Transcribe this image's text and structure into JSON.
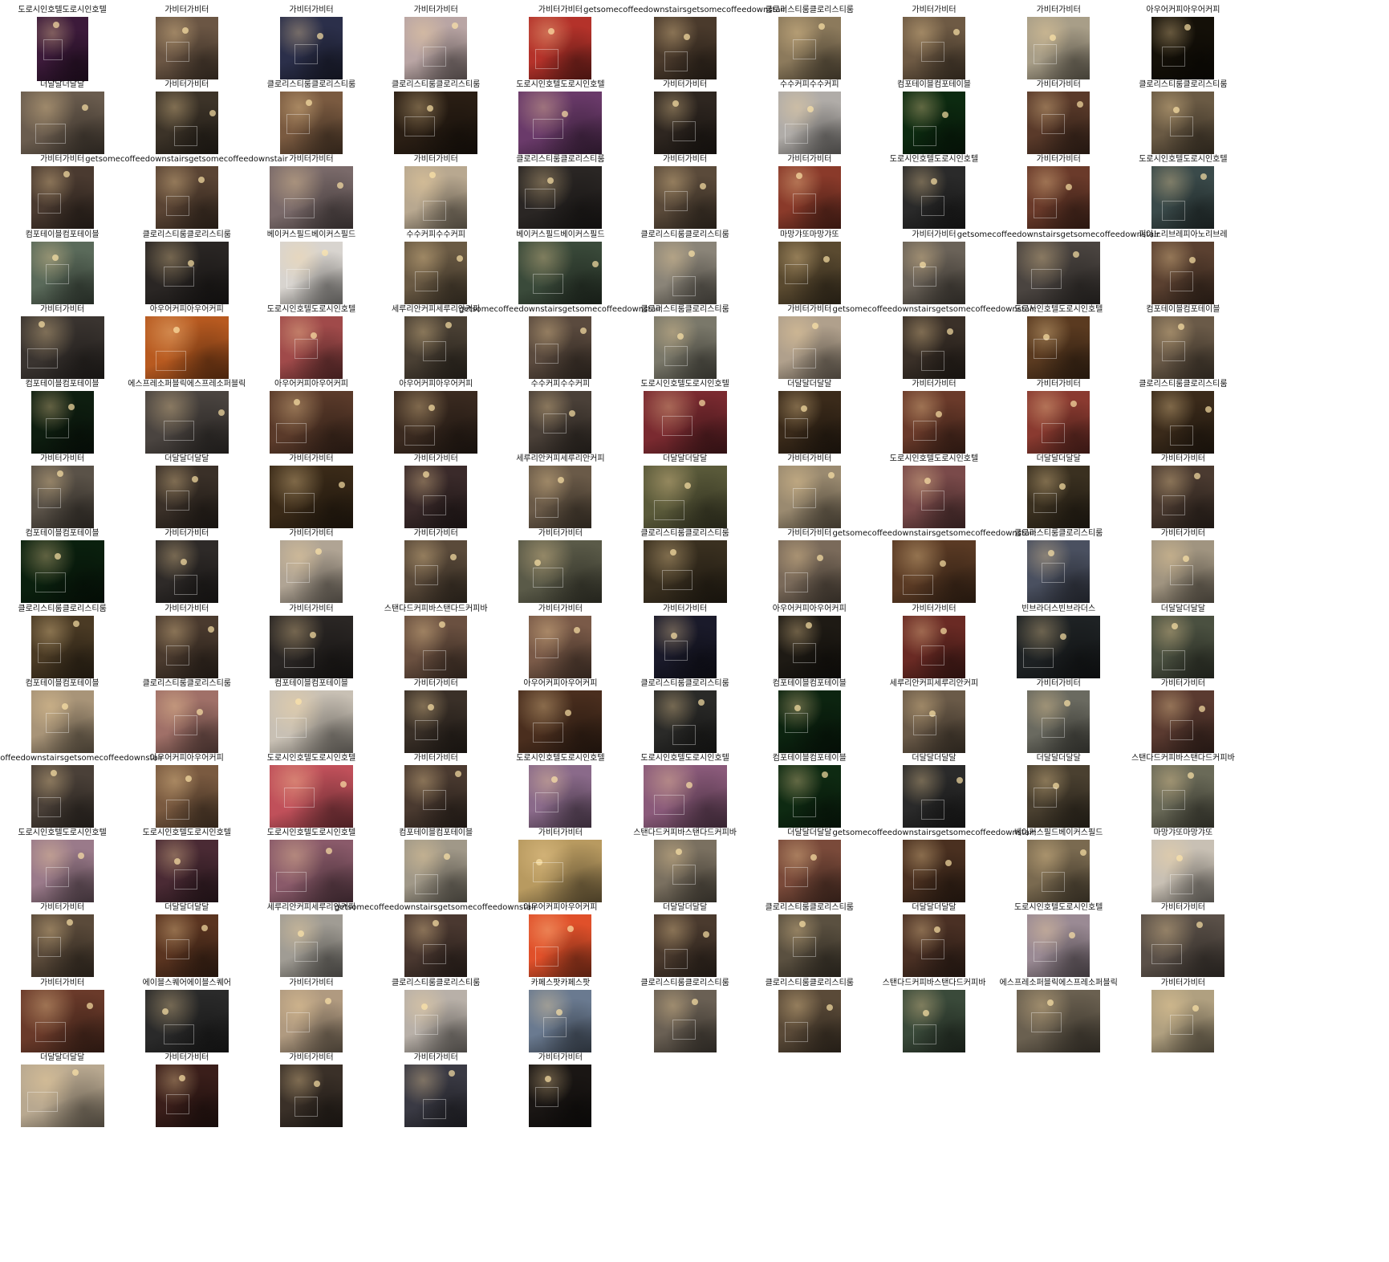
{
  "gallery": {
    "columns": 10,
    "items": [
      {
        "caption": "도로시인호텔도로시인호텔",
        "tone": "#3c1a3a",
        "shape": "portrait"
      },
      {
        "caption": "가비터가비터",
        "tone": "#6b5644",
        "shape": "square"
      },
      {
        "caption": "가비터가비터",
        "tone": "#2b2f4a",
        "shape": "square"
      },
      {
        "caption": "가비터가비터",
        "tone": "#b9a5a4",
        "shape": "square"
      },
      {
        "caption": "가비터가비터",
        "tone": "#b4322a",
        "shape": "square"
      },
      {
        "caption": "getsomecoffeedownstairsgetsomecoffeedownstairs",
        "tone": "#4a3a2c",
        "shape": "square"
      },
      {
        "caption": "클로리스티룸클로리스티룸",
        "tone": "#8c7a5c",
        "shape": "square"
      },
      {
        "caption": "가비터가비터",
        "tone": "#6e5a44",
        "shape": "square"
      },
      {
        "caption": "가비터가비터",
        "tone": "#a89e88",
        "shape": "square"
      },
      {
        "caption": "아우어커피아우어커피",
        "tone": "#141008",
        "shape": "square"
      },
      {
        "caption": "더달달더달달",
        "tone": "#6a5c4e",
        "shape": "landscape"
      },
      {
        "caption": "가비터가비터",
        "tone": "#3c3328",
        "shape": "square"
      },
      {
        "caption": "클로리스티룸클로리스티룸",
        "tone": "#7a5a40",
        "shape": "square"
      },
      {
        "caption": "클로리스티룸클로리스티룸",
        "tone": "#2a1e14",
        "shape": "landscape"
      },
      {
        "caption": "도로시인호텔도로시인호텔",
        "tone": "#6a3a6a",
        "shape": "landscape"
      },
      {
        "caption": "가비터가비터",
        "tone": "#2e2620",
        "shape": "square"
      },
      {
        "caption": "수수커피수수커피",
        "tone": "#b0aca8",
        "shape": "square"
      },
      {
        "caption": "컴포테이블컴포테이블",
        "tone": "#0c2a10",
        "shape": "square"
      },
      {
        "caption": "가비터가비터",
        "tone": "#5a3a2a",
        "shape": "square"
      },
      {
        "caption": "클로리스티룸클로리스티룸",
        "tone": "#6a5a44",
        "shape": "square"
      },
      {
        "caption": "가비터가비터",
        "tone": "#4a3a30",
        "shape": "square"
      },
      {
        "caption": "getsomecoffeedownstairsgetsomecoffeedownstairs",
        "tone": "#5a4434",
        "shape": "square"
      },
      {
        "caption": "가비터가비터",
        "tone": "#7a6a6a",
        "shape": "landscape"
      },
      {
        "caption": "가비터가비터",
        "tone": "#b8a890",
        "shape": "square"
      },
      {
        "caption": "클로리스티룸클로리스티룸",
        "tone": "#2a2624",
        "shape": "landscape"
      },
      {
        "caption": "가비터가비터",
        "tone": "#5a4a3a",
        "shape": "square"
      },
      {
        "caption": "가비터가비터",
        "tone": "#8a3a2a",
        "shape": "square"
      },
      {
        "caption": "도로시인호텔도로시인호텔",
        "tone": "#2a2a2a",
        "shape": "square"
      },
      {
        "caption": "가비터가비터",
        "tone": "#6a3a2a",
        "shape": "square"
      },
      {
        "caption": "도로시인호텔도로시인호텔",
        "tone": "#3a4a4a",
        "shape": "square"
      },
      {
        "caption": "컴포테이블컴포테이블",
        "tone": "#5a6a5a",
        "shape": "square"
      },
      {
        "caption": "클로리스티룸클로리스티룸",
        "tone": "#2a2624",
        "shape": "landscape"
      },
      {
        "caption": "베이커스필드베이커스필드",
        "tone": "#d8d4cf",
        "shape": "square"
      },
      {
        "caption": "수수커피수수커피",
        "tone": "#6a5a44",
        "shape": "square"
      },
      {
        "caption": "베이커스필드베이커스필드",
        "tone": "#3a4a3a",
        "shape": "landscape"
      },
      {
        "caption": "클로리스티룸클로리스티룸",
        "tone": "#8a8478",
        "shape": "square"
      },
      {
        "caption": "마망갸또마망갸또",
        "tone": "#5a4a30",
        "shape": "square"
      },
      {
        "caption": "가비터가비터",
        "tone": "#6a6258",
        "shape": "square"
      },
      {
        "caption": "getsomecoffeedownstairsgetsomecoffeedownstairs",
        "tone": "#4a4440",
        "shape": "landscape"
      },
      {
        "caption": "피아노리브레피아노리브레",
        "tone": "#5a4030",
        "shape": "square"
      },
      {
        "caption": "가비터가비터",
        "tone": "#3a3430",
        "shape": "landscape"
      },
      {
        "caption": "아우어커피아우어커피",
        "tone": "#b85a20",
        "shape": "landscape"
      },
      {
        "caption": "도로시인호텔도로시인호텔",
        "tone": "#a04a4a",
        "shape": "square"
      },
      {
        "caption": "세루리안커피세루리안커피",
        "tone": "#4a4034",
        "shape": "square"
      },
      {
        "caption": "getsomecoffeedownstairsgetsomecoffeedownstairs",
        "tone": "#5a4a3e",
        "shape": "square"
      },
      {
        "caption": "클로리스티룸클로리스티룸",
        "tone": "#7a786a",
        "shape": "square"
      },
      {
        "caption": "가비터가비터",
        "tone": "#b0a08c",
        "shape": "square"
      },
      {
        "caption": "getsomecoffeedownstairsgetsomecoffeedownstairs",
        "tone": "#3a3028",
        "shape": "square"
      },
      {
        "caption": "도로시인호텔도로시인호텔",
        "tone": "#5a3a20",
        "shape": "square"
      },
      {
        "caption": "컴포테이블컴포테이블",
        "tone": "#6a5a48",
        "shape": "square"
      },
      {
        "caption": "컴포테이블컴포테이블",
        "tone": "#0e1e10",
        "shape": "square"
      },
      {
        "caption": "에스프레소퍼블릭에스프레소퍼블릭",
        "tone": "#4a4440",
        "shape": "landscape"
      },
      {
        "caption": "아우어커피아우어커피",
        "tone": "#5a3a2a",
        "shape": "landscape"
      },
      {
        "caption": "아우어커피아우어커피",
        "tone": "#3a2a20",
        "shape": "landscape"
      },
      {
        "caption": "수수커피수수커피",
        "tone": "#4a4038",
        "shape": "square"
      },
      {
        "caption": "도로시인호텔도로시인호텔",
        "tone": "#7a2a30",
        "shape": "landscape"
      },
      {
        "caption": "더달달더달달",
        "tone": "#3a2a1a",
        "shape": "square"
      },
      {
        "caption": "가비터가비터",
        "tone": "#6a3a2a",
        "shape": "square"
      },
      {
        "caption": "가비터가비터",
        "tone": "#8a3a30",
        "shape": "square"
      },
      {
        "caption": "클로리스티룸클로리스티룸",
        "tone": "#3a2a1a",
        "shape": "square"
      },
      {
        "caption": "가비터가비터",
        "tone": "#5a5248",
        "shape": "square"
      },
      {
        "caption": "더달달더달달",
        "tone": "#3a3028",
        "shape": "square"
      },
      {
        "caption": "가비터가비터",
        "tone": "#3a2a18",
        "shape": "landscape"
      },
      {
        "caption": "가비터가비터",
        "tone": "#3a2a2a",
        "shape": "square"
      },
      {
        "caption": "세루리안커피세루리안커피",
        "tone": "#6a5a48",
        "shape": "square"
      },
      {
        "caption": "더달달더달달",
        "tone": "#5a5a3a",
        "shape": "landscape"
      },
      {
        "caption": "가비터가비터",
        "tone": "#9a8a70",
        "shape": "square"
      },
      {
        "caption": "도로시인호텔도로시인호텔",
        "tone": "#7a4a4a",
        "shape": "square"
      },
      {
        "caption": "더달달더달달",
        "tone": "#3a3020",
        "shape": "square"
      },
      {
        "caption": "가비터가비터",
        "tone": "#4a3a30",
        "shape": "square"
      },
      {
        "caption": "컴포테이블컴포테이블",
        "tone": "#0a200e",
        "shape": "landscape"
      },
      {
        "caption": "가비터가비터",
        "tone": "#2e2a28",
        "shape": "square"
      },
      {
        "caption": "가비터가비터",
        "tone": "#b0a494",
        "shape": "square"
      },
      {
        "caption": "가비터가비터",
        "tone": "#5a4a3a",
        "shape": "square"
      },
      {
        "caption": "가비터가비터",
        "tone": "#5a5a48",
        "shape": "landscape"
      },
      {
        "caption": "클로리스티룸클로리스티룸",
        "tone": "#3a3020",
        "shape": "landscape"
      },
      {
        "caption": "가비터가비터",
        "tone": "#7a6a5a",
        "shape": "square"
      },
      {
        "caption": "getsomecoffeedownstairsgetsomecoffeedownstairs",
        "tone": "#5a3a24",
        "shape": "landscape"
      },
      {
        "caption": "클로리스티룸클로리스티룸",
        "tone": "#4a5060",
        "shape": "square"
      },
      {
        "caption": "가비터가비터",
        "tone": "#a09480",
        "shape": "square"
      },
      {
        "caption": "클로리스티룸클로리스티룸",
        "tone": "#4a3a24",
        "shape": "square"
      },
      {
        "caption": "가비터가비터",
        "tone": "#4a3a2e",
        "shape": "square"
      },
      {
        "caption": "가비터가비터",
        "tone": "#2a2624",
        "shape": "landscape"
      },
      {
        "caption": "스탠다드커피바스탠다드커피바",
        "tone": "#6a5040",
        "shape": "square"
      },
      {
        "caption": "가비터가비터",
        "tone": "#7a5a48",
        "shape": "square"
      },
      {
        "caption": "가비터가비터",
        "tone": "#1a1a2a",
        "shape": "square"
      },
      {
        "caption": "아우어커피아우어커피",
        "tone": "#1e1a14",
        "shape": "square"
      },
      {
        "caption": "가비터가비터",
        "tone": "#6a2a24",
        "shape": "square"
      },
      {
        "caption": "빈브라더스빈브라더스",
        "tone": "#1e2224",
        "shape": "landscape"
      },
      {
        "caption": "더달달더달달",
        "tone": "#4a5040",
        "shape": "square"
      },
      {
        "caption": "컴포테이블컴포테이블",
        "tone": "#a89478",
        "shape": "square"
      },
      {
        "caption": "클로리스티룸클로리스티룸",
        "tone": "#a07068",
        "shape": "square"
      },
      {
        "caption": "컴포테이블컴포테이블",
        "tone": "#c8c0b4",
        "shape": "landscape"
      },
      {
        "caption": "가비터가비터",
        "tone": "#3a3028",
        "shape": "square"
      },
      {
        "caption": "아우어커피아우어커피",
        "tone": "#4a2e1e",
        "shape": "landscape"
      },
      {
        "caption": "클로리스티룸클로리스티룸",
        "tone": "#2a2a28",
        "shape": "square"
      },
      {
        "caption": "컴포테이블컴포테이블",
        "tone": "#0c2410",
        "shape": "square"
      },
      {
        "caption": "세루리안커피세루리안커피",
        "tone": "#6a5a48",
        "shape": "square"
      },
      {
        "caption": "가비터가비터",
        "tone": "#6a6a60",
        "shape": "square"
      },
      {
        "caption": "가비터가비터",
        "tone": "#5a3a30",
        "shape": "square"
      },
      {
        "caption": "getsomecoffeedownstairsgetsomecoffeedownstairs",
        "tone": "#4a4038",
        "shape": "square"
      },
      {
        "caption": "아우어커피아우어커피",
        "tone": "#7a5a40",
        "shape": "square"
      },
      {
        "caption": "도로시인호텔도로시인호텔",
        "tone": "#c0505a",
        "shape": "landscape"
      },
      {
        "caption": "가비터가비터",
        "tone": "#4a3a30",
        "shape": "square"
      },
      {
        "caption": "도로시인호텔도로시인호텔",
        "tone": "#8a6a8a",
        "shape": "square"
      },
      {
        "caption": "도로시인호텔도로시인호텔",
        "tone": "#8a5a7a",
        "shape": "landscape"
      },
      {
        "caption": "컴포테이블컴포테이블",
        "tone": "#0e2a12",
        "shape": "square"
      },
      {
        "caption": "더달달더달달",
        "tone": "#2a2a2a",
        "shape": "square"
      },
      {
        "caption": "더달달더달달",
        "tone": "#4a4030",
        "shape": "square"
      },
      {
        "caption": "스탠다드커피바스탠다드커피바",
        "tone": "#6a6a58",
        "shape": "square"
      },
      {
        "caption": "도로시인호텔도로시인호텔",
        "tone": "#9a7a8a",
        "shape": "square"
      },
      {
        "caption": "도로시인호텔도로시인호텔",
        "tone": "#4a2a34",
        "shape": "square"
      },
      {
        "caption": "도로시인호텔도로시인호텔",
        "tone": "#8a5a6a",
        "shape": "landscape"
      },
      {
        "caption": "컴포테이블컴포테이블",
        "tone": "#a09888",
        "shape": "square"
      },
      {
        "caption": "가비터가비터",
        "tone": "#b89a60",
        "shape": "landscape"
      },
      {
        "caption": "스탠다드커피바스탠다드커피바",
        "tone": "#7a7060",
        "shape": "square"
      },
      {
        "caption": "더달달더달달",
        "tone": "#7a4a3a",
        "shape": "square"
      },
      {
        "caption": "getsomecoffeedownstairsgetsomecoffeedownstairs",
        "tone": "#4a3020",
        "shape": "square"
      },
      {
        "caption": "베이커스필드베이커스필드",
        "tone": "#7a6a50",
        "shape": "square"
      },
      {
        "caption": "마망갸또마망갸또",
        "tone": "#c8c0b4",
        "shape": "square"
      },
      {
        "caption": "가비터가비터",
        "tone": "#5a4a3a",
        "shape": "square"
      },
      {
        "caption": "더달달더달달",
        "tone": "#5a3420",
        "shape": "square"
      },
      {
        "caption": "세루리안커피세루리안커피",
        "tone": "#a09c94",
        "shape": "square"
      },
      {
        "caption": "getsomecoffeedownstairsgetsomecoffeedownstairs",
        "tone": "#4a3830",
        "shape": "square"
      },
      {
        "caption": "아우어커피아우어커피",
        "tone": "#e0502a",
        "shape": "square"
      },
      {
        "caption": "더달달더달달",
        "tone": "#4a3a2e",
        "shape": "square"
      },
      {
        "caption": "클로리스티룸클로리스티룸",
        "tone": "#5a5040",
        "shape": "square"
      },
      {
        "caption": "더달달더달달",
        "tone": "#4a3024",
        "shape": "square"
      },
      {
        "caption": "도로시인호텔도로시인호텔",
        "tone": "#9a8a94",
        "shape": "square"
      },
      {
        "caption": "가비터가비터",
        "tone": "#5a5048",
        "shape": "landscape"
      },
      {
        "caption": "가비터가비터",
        "tone": "#6a3a2a",
        "shape": "landscape"
      },
      {
        "caption": "에이블스퀘어에이블스퀘어",
        "tone": "#2a2a2a",
        "shape": "landscape"
      },
      {
        "caption": "가비터가비터",
        "tone": "#b09a80",
        "shape": "square"
      },
      {
        "caption": "클로리스티룸클로리스티룸",
        "tone": "#b8b0a8",
        "shape": "square"
      },
      {
        "caption": "카페스팟카페스팟",
        "tone": "#6a7a90",
        "shape": "square"
      },
      {
        "caption": "클로리스티룸클로리스티룸",
        "tone": "#6a6054",
        "shape": "square"
      },
      {
        "caption": "클로리스티룸클로리스티룸",
        "tone": "#5a4a38",
        "shape": "square"
      },
      {
        "caption": "스탠다드커피바스탠다드커피바",
        "tone": "#3a4a3a",
        "shape": "square"
      },
      {
        "caption": "에스프레소퍼블릭에스프레소퍼블릭",
        "tone": "#6a6050",
        "shape": "landscape"
      },
      {
        "caption": "가비터가비터",
        "tone": "#b0a080",
        "shape": "square"
      },
      {
        "caption": "더달달더달달",
        "tone": "#b8a890",
        "shape": "landscape"
      },
      {
        "caption": "가비터가비터",
        "tone": "#3a1e1a",
        "shape": "square"
      },
      {
        "caption": "가비터가비터",
        "tone": "#3a3028",
        "shape": "square"
      },
      {
        "caption": "가비터가비터",
        "tone": "#3a3a44",
        "shape": "square"
      },
      {
        "caption": "가비터가비터",
        "tone": "#1a1614",
        "shape": "square"
      }
    ]
  }
}
